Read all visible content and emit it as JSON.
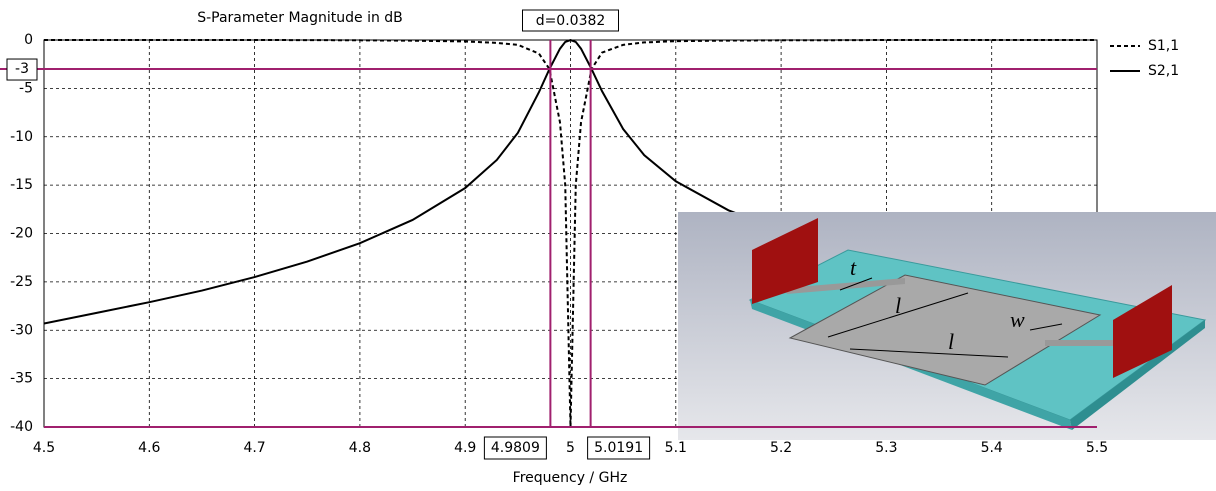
{
  "chart_data": {
    "type": "line",
    "title": "S-Parameter Magnitude in dB",
    "xlabel": "Frequency / GHz",
    "x": [
      4.5,
      4.55,
      4.6,
      4.65,
      4.7,
      4.75,
      4.8,
      4.85,
      4.9,
      4.93,
      4.95,
      4.97,
      4.98,
      4.99,
      4.995,
      5.0,
      5.005,
      5.01,
      5.02,
      5.03,
      5.05,
      5.07,
      5.1,
      5.15,
      5.2,
      5.25,
      5.3,
      5.35,
      5.4,
      5.45,
      5.5
    ],
    "series": [
      {
        "name": "S1,1",
        "color": "#000000",
        "dash": true,
        "values": [
          0,
          0,
          0,
          0,
          0,
          -0.01,
          -0.03,
          -0.07,
          -0.15,
          -0.3,
          -0.5,
          -1.4,
          -3,
          -8.5,
          -15,
          -40,
          -15,
          -8.5,
          -3,
          -1.3,
          -0.5,
          -0.25,
          -0.12,
          -0.06,
          -0.03,
          -0.02,
          0,
          0,
          0,
          0,
          0
        ]
      },
      {
        "name": "S2,1",
        "color": "#000000",
        "dash": false,
        "values": [
          -29.3,
          -28.2,
          -27.1,
          -25.9,
          -24.5,
          -22.9,
          -21,
          -18.6,
          -15.3,
          -12.4,
          -9.6,
          -5.4,
          -3,
          -0.9,
          -0.2,
          0,
          -0.2,
          -0.9,
          -3,
          -5.3,
          -9.2,
          -11.9,
          -14.6,
          -17.6,
          -19.7,
          -21.3,
          -22.6,
          -23.7,
          -24.7,
          -25.5,
          -26.3
        ]
      }
    ],
    "xlim": [
      4.5,
      5.5
    ],
    "ylim": [
      -40,
      0
    ],
    "xticks": [
      4.5,
      4.6,
      4.7,
      4.8,
      4.9,
      5,
      5.1,
      5.2,
      5.3,
      5.4,
      5.5
    ],
    "yticks": [
      0,
      -5,
      -10,
      -15,
      -20,
      -25,
      -30,
      -35,
      -40
    ],
    "grid": true,
    "markers": {
      "color": "#a0206e",
      "y": -3,
      "x": [
        4.9809,
        5.0191
      ],
      "delta_label": "d=0.0382"
    },
    "inset": {
      "labels": [
        "t",
        "l",
        "l",
        "w"
      ]
    }
  }
}
